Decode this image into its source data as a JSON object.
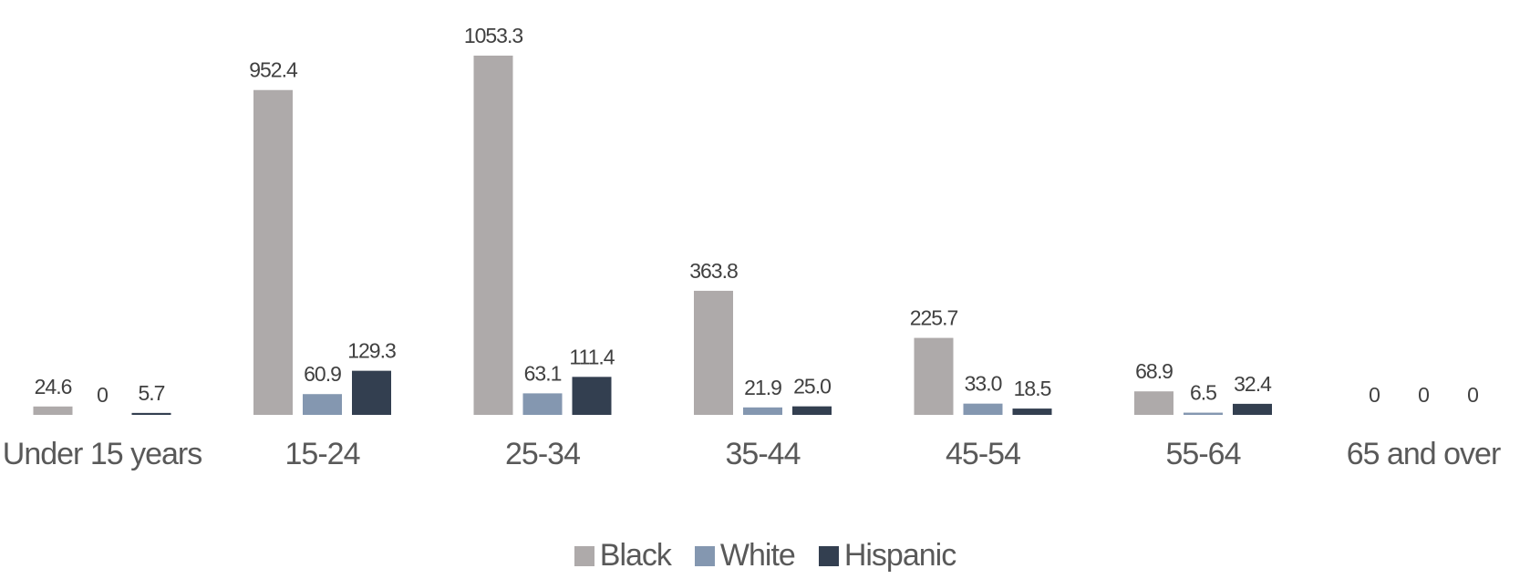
{
  "chart_data": {
    "type": "bar",
    "categories": [
      "Under 15 years",
      "15-24",
      "25-34",
      "35-44",
      "45-54",
      "55-64",
      "65 and over"
    ],
    "series": [
      {
        "name": "Black",
        "color": "#aeaaaa",
        "values": [
          24.6,
          952.4,
          1053.3,
          363.8,
          225.7,
          68.9,
          0
        ]
      },
      {
        "name": "White",
        "color": "#8497b0",
        "values": [
          0,
          60.9,
          63.1,
          21.9,
          33,
          6.5,
          0
        ],
        "value_labels": [
          "0",
          "60.9",
          "63.1",
          "21.9",
          "33.0",
          "6.5",
          "0"
        ]
      },
      {
        "name": "Hispanic",
        "color": "#333f50",
        "values": [
          5.7,
          129.3,
          111.4,
          25,
          18.5,
          32.4,
          0
        ],
        "value_labels": [
          "5.7",
          "129.3",
          "111.4",
          "25.0",
          "18.5",
          "32.4",
          "0"
        ]
      }
    ],
    "legend": "bottom"
  }
}
